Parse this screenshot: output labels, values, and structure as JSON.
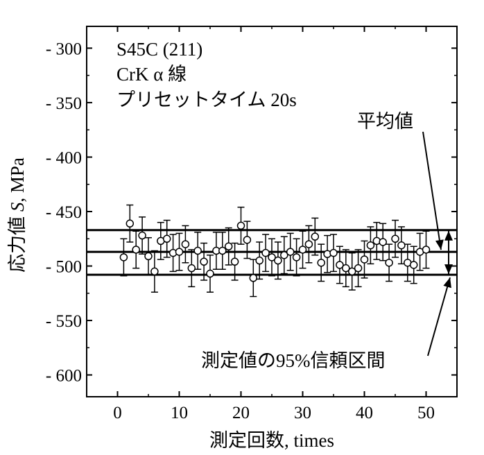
{
  "chart_data": {
    "type": "scatter",
    "title": "",
    "xlabel": "測定回数, times",
    "ylabel_parts": [
      "応力値 ",
      "S",
      ", MPa"
    ],
    "xlim": [
      -5,
      55
    ],
    "ylim": [
      -620,
      -280
    ],
    "xticks": [
      0,
      10,
      20,
      30,
      40,
      50
    ],
    "yticks": [
      -300,
      -350,
      -400,
      -450,
      -500,
      -550,
      -600
    ],
    "ytick_labels": [
      "- 300",
      "- 350",
      "- 400",
      "- 450",
      "- 500",
      "- 550",
      "- 600"
    ],
    "annotation_lines": [
      "S45C (211)",
      "CrK α 線",
      "プリセットタイム 20s"
    ],
    "mean": -487,
    "ci_upper": -467,
    "ci_lower": -508,
    "mean_label": "平均値",
    "ci_label": "測定値の95%信頼区間",
    "grid": false,
    "series": [
      {
        "x": [
          1,
          2,
          3,
          4,
          5,
          6,
          7,
          8,
          9,
          10,
          11,
          12,
          13,
          14,
          15,
          16,
          17,
          18,
          19,
          20,
          21,
          22,
          23,
          24,
          25,
          26,
          27,
          28,
          29,
          30,
          31,
          32,
          33,
          34,
          35,
          36,
          37,
          38,
          39,
          40,
          41,
          42,
          43,
          44,
          45,
          46,
          47,
          48,
          49,
          50
        ],
        "y": [
          -492,
          -461,
          -485,
          -472,
          -491,
          -505,
          -477,
          -475,
          -488,
          -487,
          -480,
          -502,
          -486,
          -496,
          -507,
          -486,
          -486,
          -482,
          -496,
          -463,
          -476,
          -511,
          -495,
          -488,
          -492,
          -495,
          -490,
          -487,
          -492,
          -485,
          -480,
          -473,
          -497,
          -489,
          -488,
          -499,
          -502,
          -505,
          -502,
          -494,
          -481,
          -477,
          -478,
          -497,
          -475,
          -481,
          -497,
          -499,
          -487,
          -485
        ],
        "err": [
          17,
          17,
          17,
          17,
          17,
          19,
          17,
          17,
          17,
          17,
          17,
          17,
          17,
          17,
          17,
          17,
          17,
          17,
          17,
          17,
          17,
          17,
          17,
          17,
          17,
          17,
          17,
          17,
          17,
          17,
          17,
          17,
          17,
          17,
          17,
          17,
          17,
          17,
          17,
          17,
          17,
          17,
          17,
          17,
          17,
          17,
          17,
          17,
          17,
          17
        ]
      }
    ]
  }
}
